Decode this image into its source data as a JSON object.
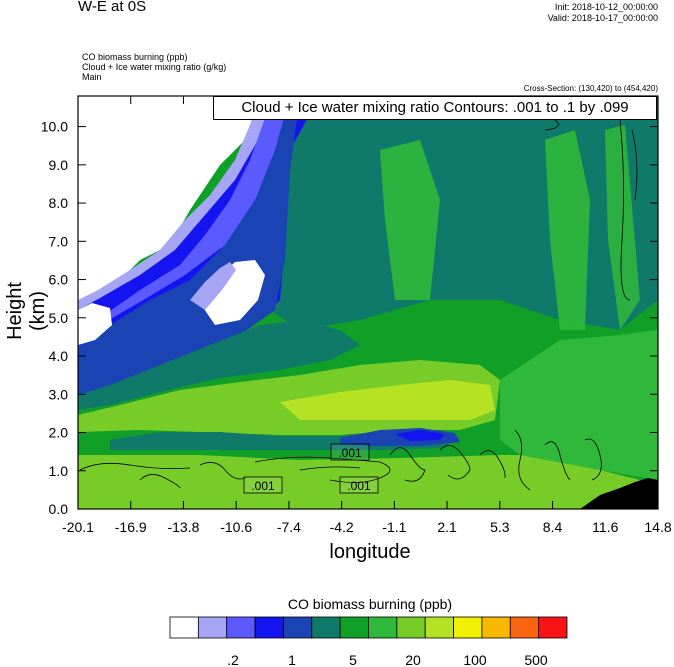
{
  "header": {
    "title": "W-E at 0S",
    "init_line": "Init: 2018-10-12_00:00:00",
    "valid_line": "Valid: 2018-10-17_00:00:00",
    "var_line1": "CO biomass burning   (ppb)",
    "var_line2": "Cloud + Ice water mixing ratio   (g/kg)",
    "var_line3": "Main",
    "cross_section": "Cross-Section: (130,420) to (454,420)",
    "contour_info": "Cloud + Ice water mixing ratio Contours: .001 to .1 by .099"
  },
  "chart_data": {
    "type": "heatmap",
    "xlabel": "longitude",
    "ylabel": "Height (km)",
    "x_ticks": [
      "-20.1",
      "-16.9",
      "-13.8",
      "-10.6",
      "-7.4",
      "-4.2",
      "-1.1",
      "2.1",
      "5.3",
      "8.4",
      "11.6",
      "14.8"
    ],
    "xlim": [
      -20.1,
      14.8
    ],
    "y_ticks": [
      "0.0",
      "1.0",
      "2.0",
      "3.0",
      "4.0",
      "5.0",
      "6.0",
      "7.0",
      "8.0",
      "9.0",
      "10.0"
    ],
    "ylim": [
      0,
      10.8
    ],
    "contour_labels": [
      ".001",
      ".001",
      ".001"
    ],
    "colorbar": {
      "title": "CO biomass burning  (ppb)",
      "labels": [
        ".2",
        "1",
        "5",
        "20",
        "100",
        "500"
      ],
      "colors": [
        "#ffffff",
        "#a6a6f5",
        "#5a5aff",
        "#1414f0",
        "#1a43b4",
        "#0f7a6a",
        "#10a028",
        "#30b83a",
        "#78cc28",
        "#b6e224",
        "#f0f000",
        "#f8b800",
        "#f86410",
        "#f81414"
      ]
    }
  }
}
